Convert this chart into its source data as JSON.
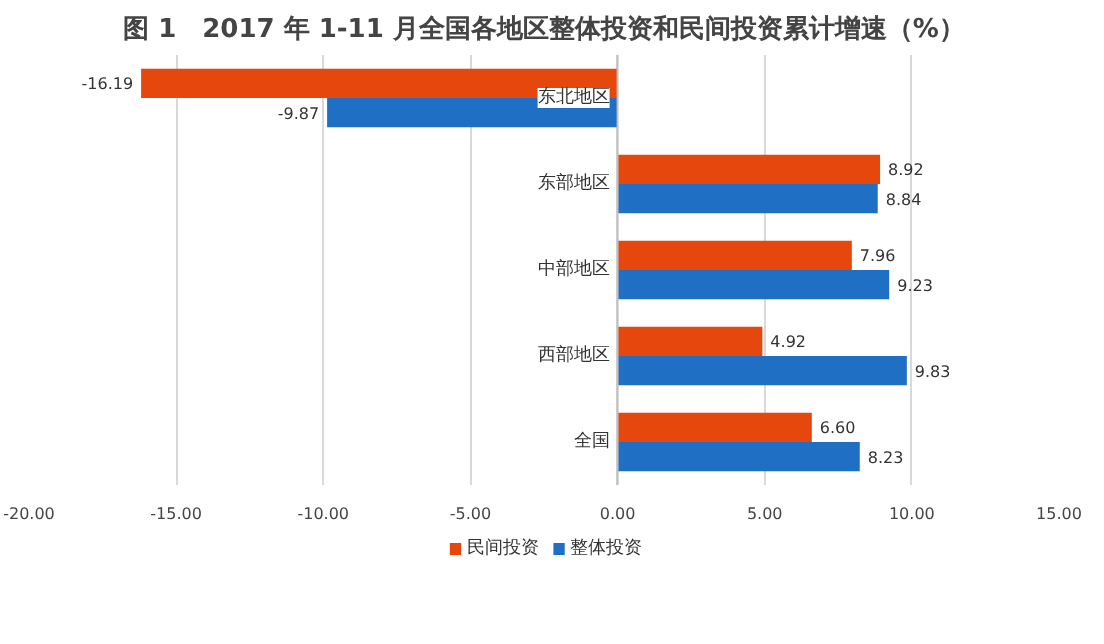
{
  "chart_data": {
    "type": "bar",
    "orientation": "horizontal",
    "title": "图 1　2017 年 1-11 月全国各地区整体投资和民间投资累计增速（%）",
    "categories": [
      "东北地区",
      "东部地区",
      "中部地区",
      "西部地区",
      "全国"
    ],
    "series": [
      {
        "name": "民间投资",
        "color": "#e5470c",
        "values": [
          -16.19,
          8.92,
          7.96,
          4.92,
          6.6
        ],
        "value_labels": [
          "-16.19",
          "8.92",
          "7.96",
          "4.92",
          "6.60"
        ]
      },
      {
        "name": "整体投资",
        "color": "#1f6fc4",
        "values": [
          -9.87,
          8.84,
          9.23,
          9.83,
          8.23
        ],
        "value_labels": [
          "-9.87",
          "8.84",
          "9.23",
          "9.83",
          "8.23"
        ]
      }
    ],
    "xlim": [
      -20,
      15
    ],
    "xticks": [
      {
        "value": -20,
        "label": "-20.00"
      },
      {
        "value": -15,
        "label": "-15.00"
      },
      {
        "value": -10,
        "label": "-10.00"
      },
      {
        "value": -5,
        "label": "-5.00"
      },
      {
        "value": 0,
        "label": "0.00"
      },
      {
        "value": 5,
        "label": "5.00"
      },
      {
        "value": 10,
        "label": "10.00"
      },
      {
        "value": 15,
        "label": "15.00"
      }
    ],
    "grid": "x",
    "legend": "bottom"
  }
}
